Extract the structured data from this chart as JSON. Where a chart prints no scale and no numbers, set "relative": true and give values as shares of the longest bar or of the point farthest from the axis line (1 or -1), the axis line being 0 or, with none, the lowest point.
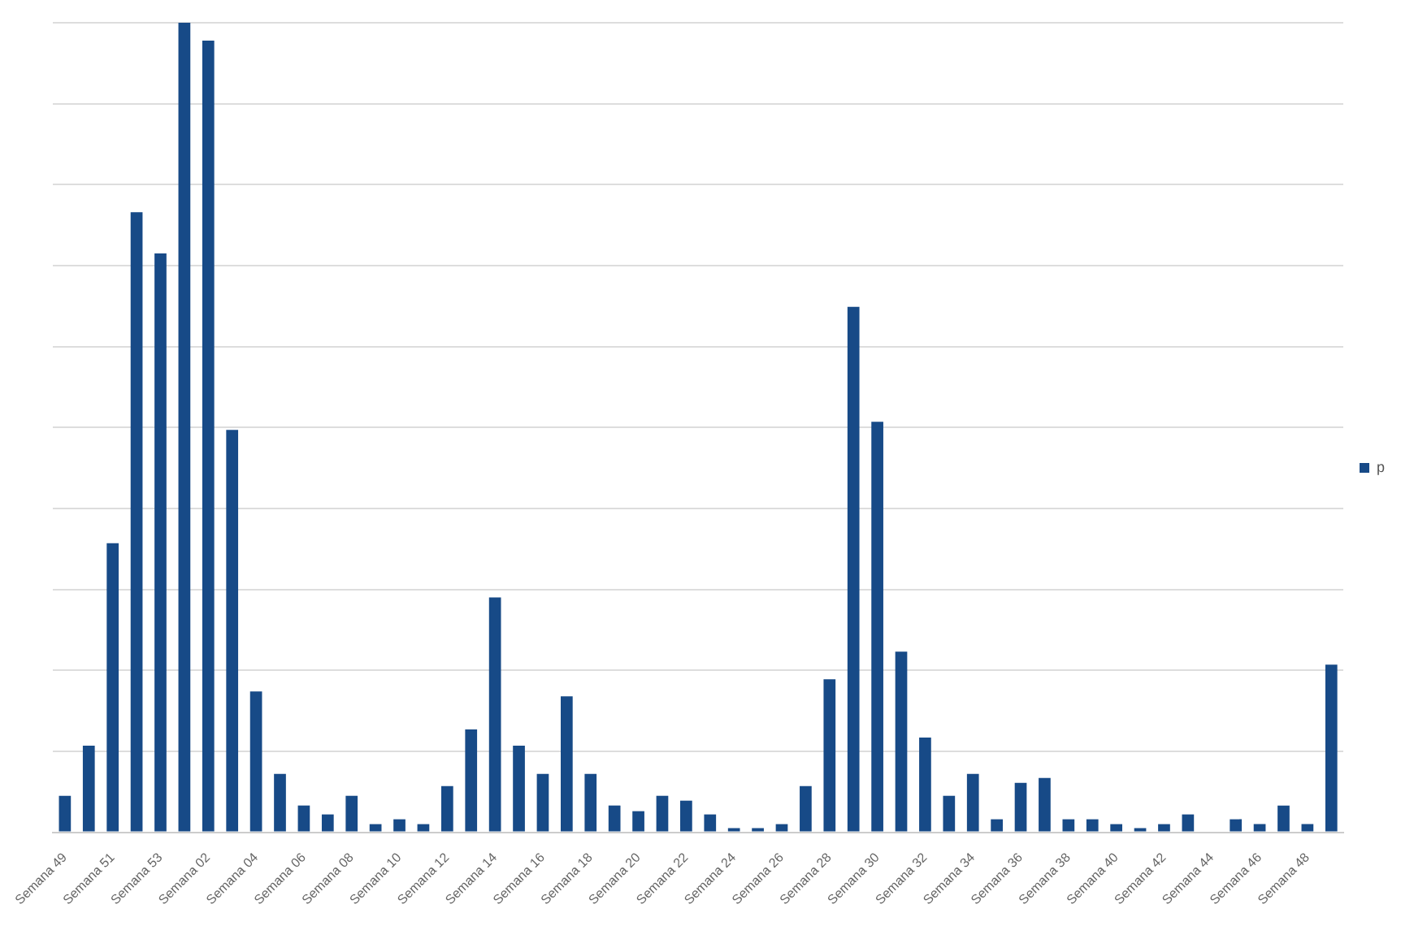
{
  "chart_data": {
    "type": "bar",
    "relative": true,
    "legend": "right",
    "grid": "y",
    "categories": [
      "Semana 49",
      null,
      "Semana 51",
      null,
      "Semana 53",
      null,
      "Semana 02",
      null,
      "Semana 04",
      null,
      "Semana 06",
      null,
      "Semana 08",
      null,
      "Semana 10",
      null,
      "Semana 12",
      null,
      "Semana 14",
      null,
      "Semana 16",
      null,
      "Semana 18",
      null,
      "Semana 20",
      null,
      "Semana 22",
      null,
      "Semana 24",
      null,
      "Semana 26",
      null,
      "Semana 28",
      null,
      "Semana 30",
      null,
      "Semana 32",
      null,
      "Semana 34",
      null,
      "Semana 36",
      null,
      "Semana 38",
      null,
      "Semana 40",
      null,
      "Semana 42",
      null,
      "Semana 44",
      null,
      "Semana 46",
      null,
      "Semana 48",
      null
    ],
    "series": [
      {
        "name": "p",
        "color": "#174a87",
        "values": [
          0.045,
          0.107,
          0.357,
          0.766,
          0.715,
          1,
          0.978,
          0.497,
          0.174,
          0.072,
          0.033,
          0.022,
          0.045,
          0.01,
          0.016,
          0.01,
          0.057,
          0.127,
          0.29,
          0.107,
          0.072,
          0.168,
          0.072,
          0.033,
          0.026,
          0.045,
          0.039,
          0.022,
          0.005,
          0.005,
          0.01,
          0.057,
          0.189,
          0.649,
          0.507,
          0.223,
          0.117,
          0.045,
          0.072,
          0.016,
          0.061,
          0.067,
          0.016,
          0.016,
          0.01,
          0.005,
          0.01,
          0.022,
          0,
          0.016,
          0.01,
          0.033,
          0.01,
          0.207
        ]
      }
    ]
  }
}
